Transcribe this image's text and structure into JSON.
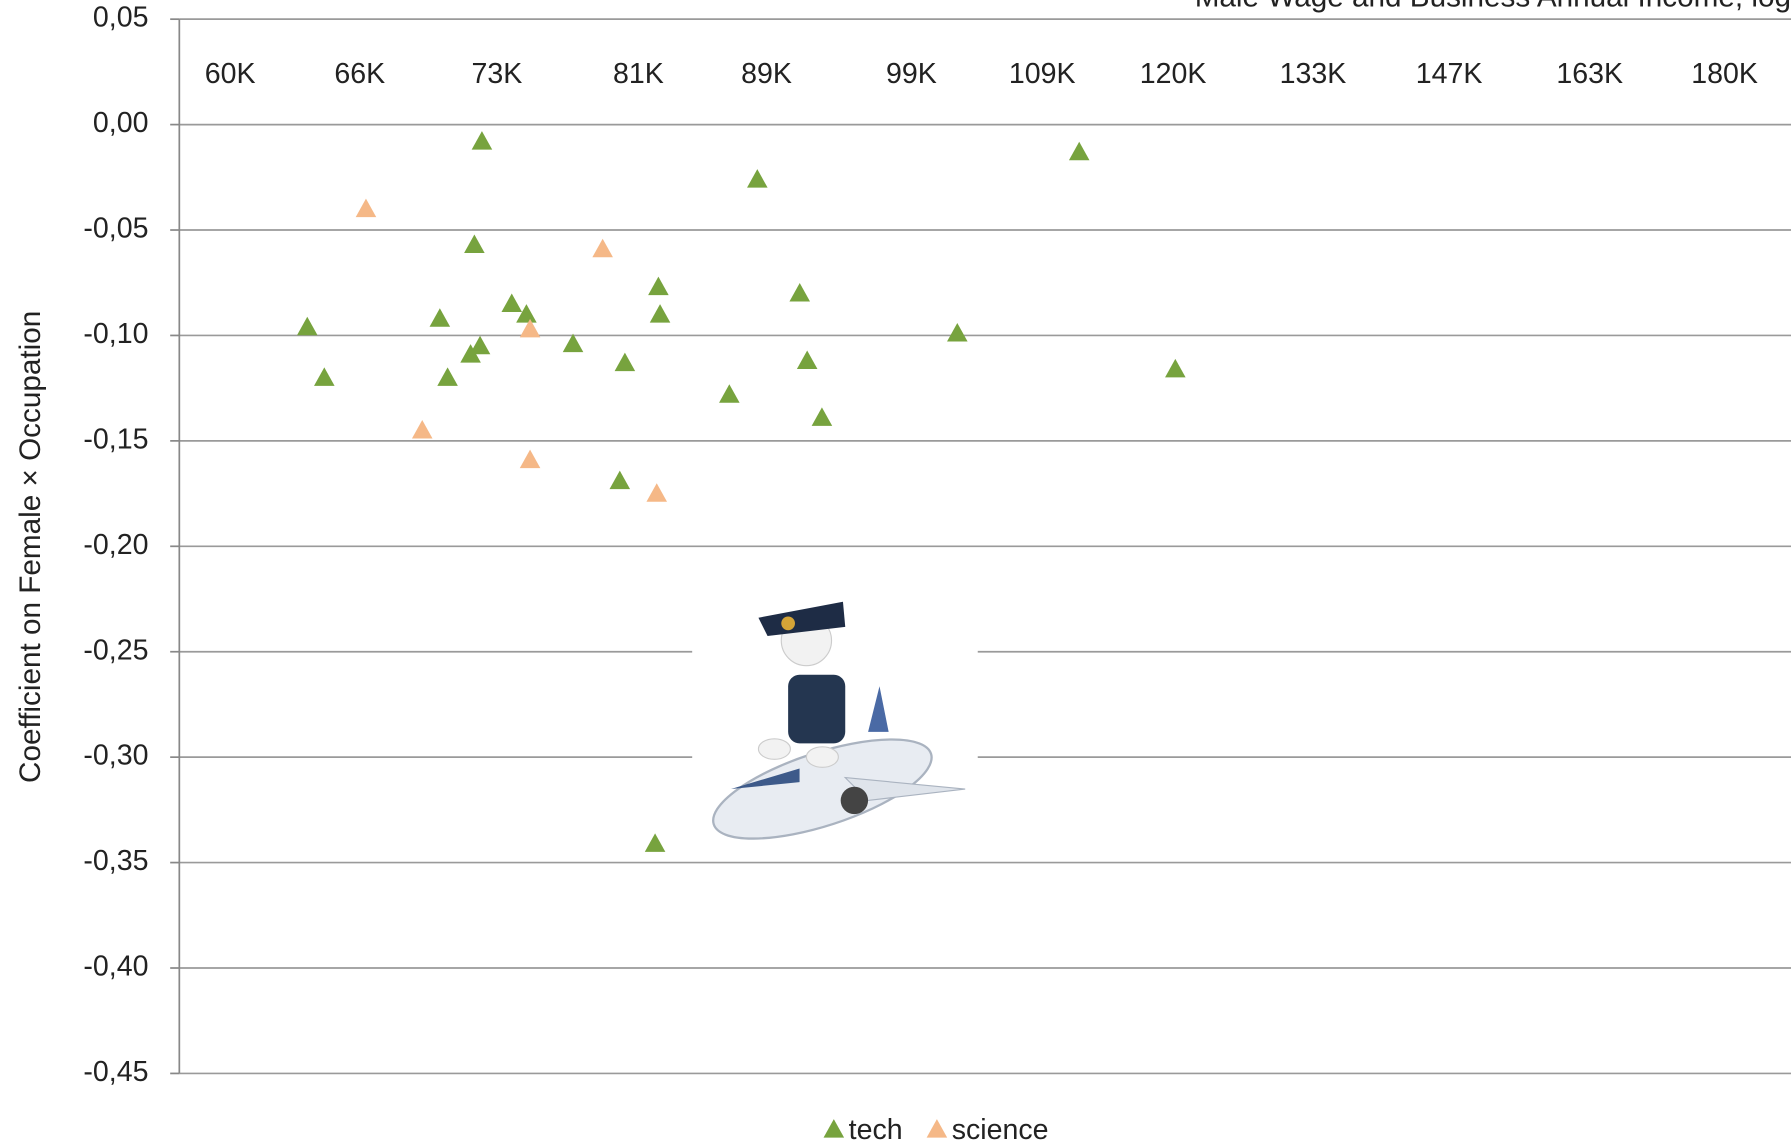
{
  "chart_data": {
    "type": "scatter",
    "x_label": "Male Wage and Business Annual Income, log",
    "y_label": "Coefficient on Female × Occupation",
    "xlog": true,
    "grid": true,
    "xlim": [
      57800,
      189000
    ],
    "xticks": [
      {
        "value": 60000,
        "label": "60K"
      },
      {
        "value": 66000,
        "label": "66K"
      },
      {
        "value": 73000,
        "label": "73K"
      },
      {
        "value": 81000,
        "label": "81K"
      },
      {
        "value": 89000,
        "label": "89K"
      },
      {
        "value": 99000,
        "label": "99K"
      },
      {
        "value": 109000,
        "label": "109K"
      },
      {
        "value": 120000,
        "label": "120K"
      },
      {
        "value": 133000,
        "label": "133K"
      },
      {
        "value": 147000,
        "label": "147K"
      },
      {
        "value": 163000,
        "label": "163K"
      },
      {
        "value": 180000,
        "label": "180K"
      }
    ],
    "ylim": [
      -0.45,
      0.05
    ],
    "yticks": [
      {
        "value": 0.05,
        "label": "0,05"
      },
      {
        "value": 0,
        "label": "0,00"
      },
      {
        "value": -0.05,
        "label": "-0,05"
      },
      {
        "value": -0.1,
        "label": "-0,10"
      },
      {
        "value": -0.15,
        "label": "-0,15"
      },
      {
        "value": -0.2,
        "label": "-0,20"
      },
      {
        "value": -0.25,
        "label": "-0,25"
      },
      {
        "value": -0.3,
        "label": "-0,30"
      },
      {
        "value": -0.35,
        "label": "-0,35"
      },
      {
        "value": -0.4,
        "label": "-0,40"
      },
      {
        "value": -0.45,
        "label": "-0,45"
      }
    ],
    "series": [
      {
        "name": "tech",
        "color": "#77a33e",
        "x": [
          72200,
          63500,
          64300,
          70000,
          70400,
          71800,
          71600,
          72100,
          73800,
          74600,
          77200,
          80200,
          79900,
          82200,
          82300,
          82000,
          86600,
          88400,
          91200,
          91700,
          92700,
          102400,
          112000,
          120200
        ],
        "values": [
          -0.008,
          -0.096,
          -0.12,
          -0.092,
          -0.12,
          -0.057,
          -0.109,
          -0.105,
          -0.085,
          -0.09,
          -0.104,
          -0.113,
          -0.169,
          -0.077,
          -0.09,
          -0.341,
          -0.128,
          -0.026,
          -0.08,
          -0.112,
          -0.139,
          -0.099,
          -0.013,
          -0.116
        ]
      },
      {
        "name": "science",
        "color": "#f5b887",
        "x": [
          66300,
          69100,
          74800,
          74800,
          78900,
          82100
        ],
        "values": [
          -0.04,
          -0.145,
          -0.097,
          -0.159,
          -0.059,
          -0.175
        ]
      }
    ]
  }
}
